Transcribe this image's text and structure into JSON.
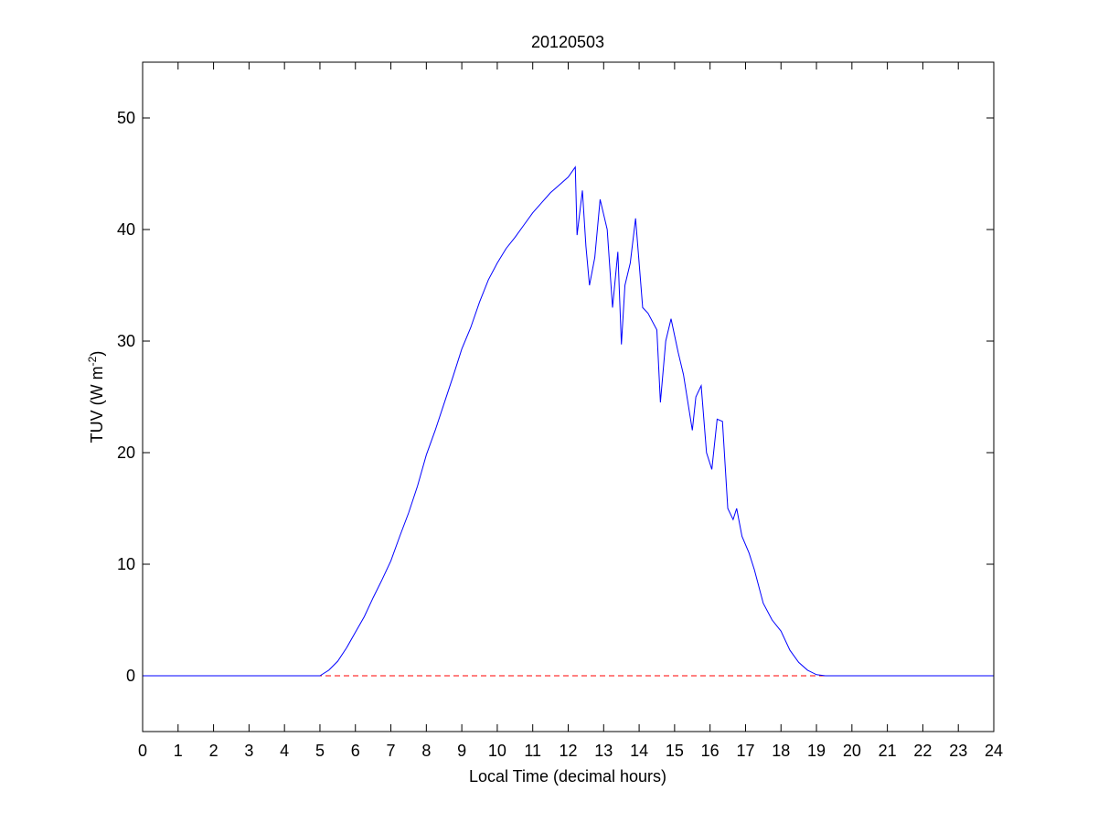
{
  "chart_data": {
    "type": "line",
    "title": "20120503",
    "xlabel": "Local Time (decimal hours)",
    "ylabel": {
      "text": "TUV (W m",
      "superscript": "-2",
      "suffix": ")"
    },
    "x": [
      0,
      1,
      2,
      3,
      4,
      5,
      5.25,
      5.5,
      5.75,
      6,
      6.25,
      6.5,
      6.75,
      7,
      7.25,
      7.5,
      7.75,
      8,
      8.25,
      8.5,
      8.75,
      9,
      9.25,
      9.5,
      9.75,
      10,
      10.25,
      10.5,
      10.75,
      11,
      11.25,
      11.5,
      11.75,
      12,
      12.2,
      12.25,
      12.4,
      12.5,
      12.6,
      12.75,
      12.9,
      13.1,
      13.25,
      13.4,
      13.5,
      13.6,
      13.75,
      13.9,
      14.1,
      14.25,
      14.5,
      14.6,
      14.75,
      14.9,
      15.1,
      15.25,
      15.5,
      15.6,
      15.75,
      15.9,
      16.05,
      16.2,
      16.35,
      16.5,
      16.65,
      16.75,
      16.9,
      17.1,
      17.25,
      17.5,
      17.75,
      18,
      18.25,
      18.5,
      18.75,
      19,
      19.25,
      20,
      21,
      22,
      23,
      24
    ],
    "series": [
      {
        "color": "#0000ff",
        "values": [
          0,
          0,
          0,
          0,
          0,
          0,
          0.5,
          1.3,
          2.5,
          3.9,
          5.3,
          7.0,
          8.6,
          10.3,
          12.5,
          14.6,
          17.0,
          19.8,
          22.0,
          24.4,
          26.8,
          29.3,
          31.2,
          33.5,
          35.5,
          37.0,
          38.3,
          39.3,
          40.4,
          41.5,
          42.4,
          43.3,
          44.0,
          44.7,
          45.6,
          39.5,
          43.5,
          38.5,
          35.0,
          37.5,
          42.7,
          40.0,
          33.0,
          38.0,
          29.7,
          35.0,
          37.0,
          41.0,
          33.0,
          32.5,
          31.0,
          24.5,
          30.0,
          32.0,
          29.0,
          27.0,
          22.0,
          25.0,
          26.0,
          20.0,
          18.5,
          23.0,
          22.8,
          15.0,
          14.0,
          15.0,
          12.5,
          11.0,
          9.5,
          6.5,
          5.0,
          4.0,
          2.3,
          1.2,
          0.5,
          0.1,
          0,
          0,
          0,
          0,
          0,
          0
        ]
      }
    ],
    "reference_line": {
      "y": 0,
      "color": "#ff0000",
      "style": "dashed"
    },
    "xlim": [
      0,
      24
    ],
    "xticks": [
      0,
      1,
      2,
      3,
      4,
      5,
      6,
      7,
      8,
      9,
      10,
      11,
      12,
      13,
      14,
      15,
      16,
      17,
      18,
      19,
      20,
      21,
      22,
      23,
      24
    ],
    "ylim": [
      -5,
      55
    ],
    "yticks": [
      0,
      10,
      20,
      30,
      40,
      50
    ],
    "grid": false
  }
}
